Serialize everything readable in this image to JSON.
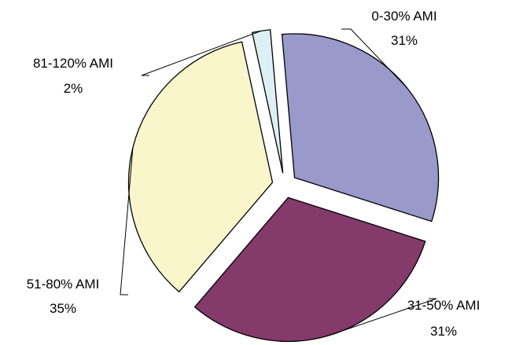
{
  "chart_data": {
    "type": "pie",
    "exploded": true,
    "slices": [
      {
        "label": "0-30% AMI",
        "value": 31,
        "value_label": "31%",
        "color": "#9999CC"
      },
      {
        "label": "31-50% AMI",
        "value": 31,
        "value_label": "31%",
        "color": "#843A6A"
      },
      {
        "label": "51-80% AMI",
        "value": 35,
        "value_label": "35%",
        "color": "#FAF6CC"
      },
      {
        "label": "81-120% AMI",
        "value": 2,
        "value_label": "2%",
        "color": "#DDF0F5"
      }
    ]
  }
}
